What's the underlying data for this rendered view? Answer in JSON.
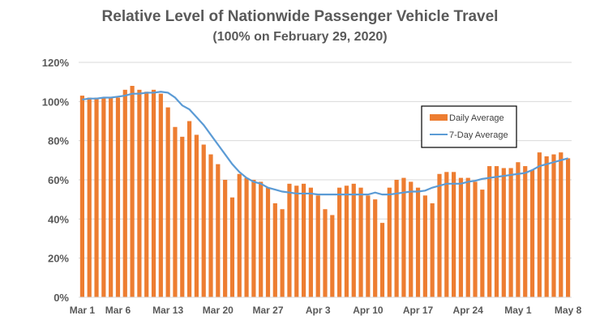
{
  "chart_data": {
    "type": "bar",
    "title": "Relative Level of Nationwide Passenger Vehicle Travel",
    "subtitle": "(100% on February 29, 2020)",
    "xlabel": "",
    "ylabel": "",
    "ylim": [
      0,
      120
    ],
    "yticks": [
      "0%",
      "20%",
      "40%",
      "60%",
      "80%",
      "100%",
      "120%"
    ],
    "xtick_labels": [
      "Mar 1",
      "Mar 6",
      "Mar 13",
      "Mar 20",
      "Mar 27",
      "Apr 3",
      "Apr 10",
      "Apr 17",
      "Apr 24",
      "May 1",
      "May 8"
    ],
    "xtick_day_index": [
      0,
      5,
      12,
      19,
      26,
      33,
      40,
      47,
      54,
      61,
      68
    ],
    "grid": "horizontal",
    "legend_position": "right",
    "series": [
      {
        "name": "Daily Average",
        "type": "bar",
        "color": "#ED7D31",
        "values": [
          103,
          102,
          102,
          102,
          102,
          102,
          106,
          108,
          106,
          105,
          106,
          104,
          97,
          87,
          82,
          90,
          83,
          78,
          73,
          68,
          60,
          51,
          63,
          61,
          60,
          59,
          56,
          48,
          45,
          58,
          57,
          58,
          56,
          52,
          45,
          42,
          56,
          57,
          58,
          56,
          52,
          50,
          38,
          56,
          60,
          61,
          59,
          56,
          52,
          48,
          63,
          64,
          64,
          61,
          61,
          59,
          55,
          67,
          67,
          66,
          66,
          69,
          67,
          65,
          74,
          72,
          73,
          74,
          71
        ]
      },
      {
        "name": "7-Day Average",
        "type": "line",
        "color": "#5B9BD5",
        "values": [
          101,
          101.5,
          101.5,
          102,
          102,
          102.5,
          103,
          104,
          104,
          104.5,
          104.5,
          105,
          104.5,
          102,
          98,
          96,
          92,
          88,
          83,
          78,
          73,
          68,
          64,
          61,
          59,
          58,
          56,
          55,
          54,
          53.5,
          53,
          53,
          53,
          52.5,
          52.5,
          52.5,
          52.5,
          52.5,
          52.5,
          52.5,
          52.5,
          53.5,
          52.5,
          52.5,
          53,
          53.5,
          54,
          54,
          54.5,
          56,
          57,
          58,
          58,
          58,
          59,
          59.5,
          60.5,
          61,
          61.5,
          62,
          62.5,
          63,
          63.5,
          65,
          67,
          68,
          69,
          70,
          71
        ]
      }
    ]
  }
}
